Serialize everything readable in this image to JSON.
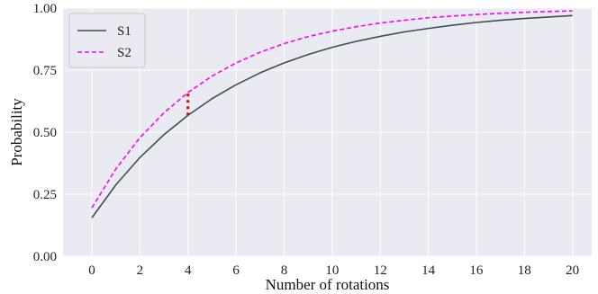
{
  "chart_data": {
    "type": "line",
    "xlabel": "Number of rotations",
    "ylabel": "Probability",
    "xlim": [
      -1.2,
      20.8
    ],
    "ylim": [
      0,
      1.0
    ],
    "xticks": [
      0,
      2,
      4,
      6,
      8,
      10,
      12,
      14,
      16,
      18,
      20
    ],
    "xtick_labels": [
      "0",
      "2",
      "4",
      "6",
      "8",
      "10",
      "12",
      "14",
      "16",
      "18",
      "20"
    ],
    "yticks": [
      0.0,
      0.25,
      0.5,
      0.75,
      1.0
    ],
    "ytick_labels": [
      "0.00",
      "0.25",
      "0.50",
      "0.75",
      "1.00"
    ],
    "grid": true,
    "legend_position": "top-left",
    "x": [
      0,
      1,
      2,
      3,
      4,
      5,
      6,
      7,
      8,
      9,
      10,
      11,
      12,
      13,
      14,
      15,
      16,
      17,
      18,
      19,
      20
    ],
    "series": [
      {
        "name": "S1",
        "style": "solid",
        "color": "#3d4f4f",
        "values": [
          0.155,
          0.288,
          0.398,
          0.49,
          0.568,
          0.635,
          0.691,
          0.739,
          0.779,
          0.813,
          0.842,
          0.866,
          0.886,
          0.904,
          0.918,
          0.931,
          0.942,
          0.951,
          0.958,
          0.964,
          0.97
        ]
      },
      {
        "name": "S2",
        "style": "dashed",
        "color": "#ff00ff",
        "values": [
          0.195,
          0.352,
          0.478,
          0.578,
          0.66,
          0.726,
          0.779,
          0.822,
          0.857,
          0.885,
          0.907,
          0.925,
          0.94,
          0.951,
          0.961,
          0.968,
          0.974,
          0.979,
          0.983,
          0.986,
          0.989
        ]
      }
    ],
    "annotation": {
      "kind": "dotted-vertical-segment",
      "color": "#dd0000",
      "x": 4,
      "y_from": 0.568,
      "y_to": 0.66
    },
    "colors": {
      "plot_background": "#eaeaf2",
      "grid": "#ffffff"
    }
  }
}
